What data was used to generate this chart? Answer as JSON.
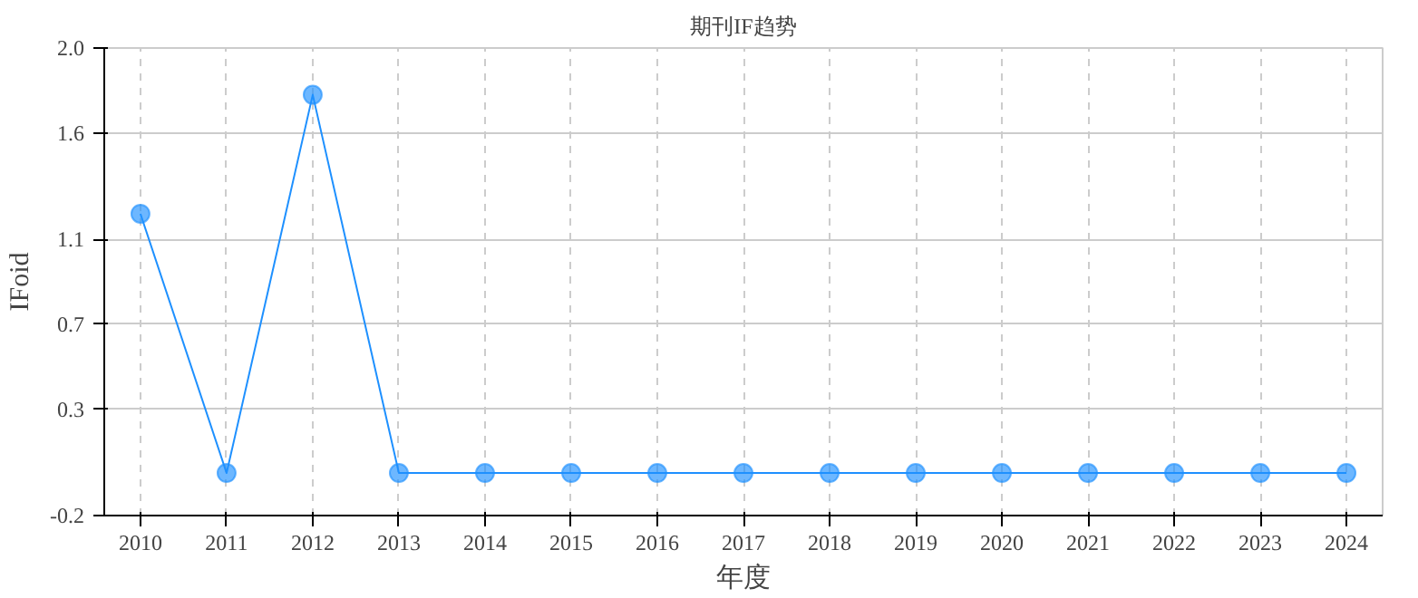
{
  "chart_data": {
    "type": "line",
    "title": "期刊IF趋势",
    "xlabel": "年度",
    "ylabel": "IFoid",
    "categories": [
      "2010",
      "2011",
      "2012",
      "2013",
      "2014",
      "2015",
      "2016",
      "2017",
      "2018",
      "2019",
      "2020",
      "2021",
      "2022",
      "2023",
      "2024"
    ],
    "series": [
      {
        "color": "#1e90ff",
        "values": [
          1.22,
          0,
          1.78,
          0,
          0,
          0,
          0,
          0,
          0,
          0,
          0,
          0,
          0,
          0,
          0
        ]
      }
    ],
    "ylim": [
      -0.2,
      2.0
    ],
    "yticks": [
      {
        "value": -0.2,
        "label": "-0.2"
      },
      0.3,
      0.7,
      1.1,
      1.6,
      {
        "value": 2.0,
        "label": "2.0"
      }
    ],
    "grid": true,
    "marker": "circle",
    "line_style": "solid"
  }
}
